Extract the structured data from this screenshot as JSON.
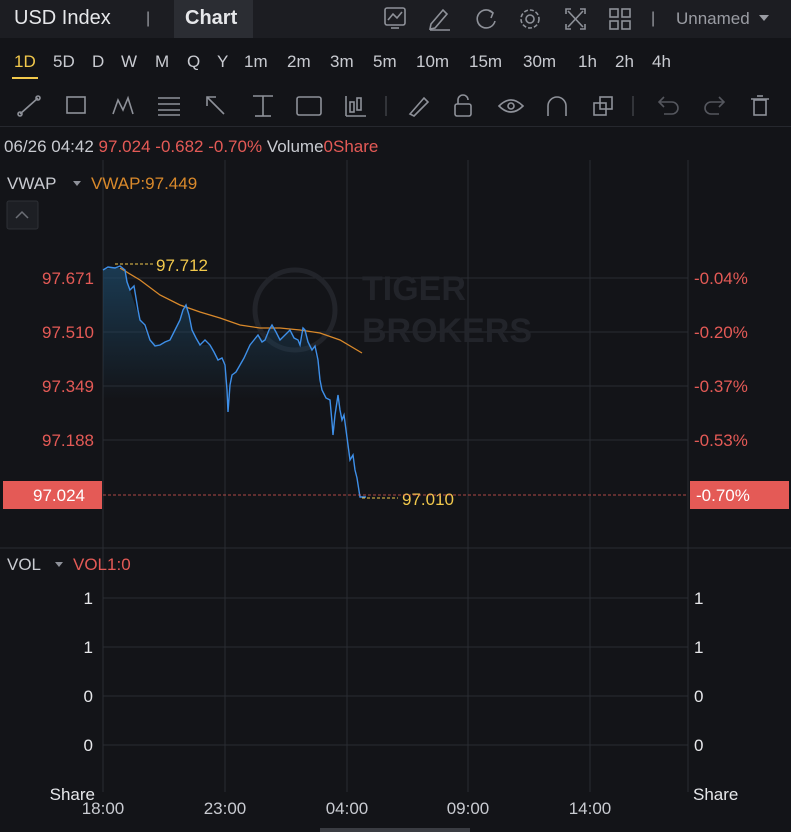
{
  "header": {
    "title": "USD Index",
    "separator": "|",
    "tab": "Chart",
    "layout": "Unnamed"
  },
  "timeframes": [
    "1D",
    "5D",
    "D",
    "W",
    "M",
    "Q",
    "Y",
    "1m",
    "2m",
    "3m",
    "5m",
    "10m",
    "15m",
    "30m",
    "1h",
    "2h",
    "4h"
  ],
  "info": {
    "time": "06/26 04:42",
    "price": "97.024",
    "change": "-0.682",
    "change_pct": "-0.70%",
    "volume_label": "Volume",
    "volume": "0Share"
  },
  "price_pane": {
    "indicator": "VWAP",
    "indicator_value": "VWAP:97.449",
    "left_ticks": [
      "97.671",
      "97.510",
      "97.349",
      "97.188"
    ],
    "right_ticks": [
      "-0.04%",
      "-0.20%",
      "-0.37%",
      "-0.53%"
    ],
    "current_price": "97.024",
    "current_pct": "-0.70%",
    "high_label": "97.712",
    "low_label": "97.010",
    "watermark": [
      "TIGER",
      "BROKERS"
    ]
  },
  "volume_pane": {
    "indicator": "VOL",
    "indicator_value": "VOL1:0",
    "left_ticks": [
      "1",
      "1",
      "0",
      "0"
    ],
    "right_ticks": [
      "1",
      "1",
      "0",
      "0"
    ],
    "unit_left": "Share",
    "unit_right": "Share"
  },
  "x_axis": [
    "18:00",
    "23:00",
    "04:00",
    "09:00",
    "14:00"
  ]
}
